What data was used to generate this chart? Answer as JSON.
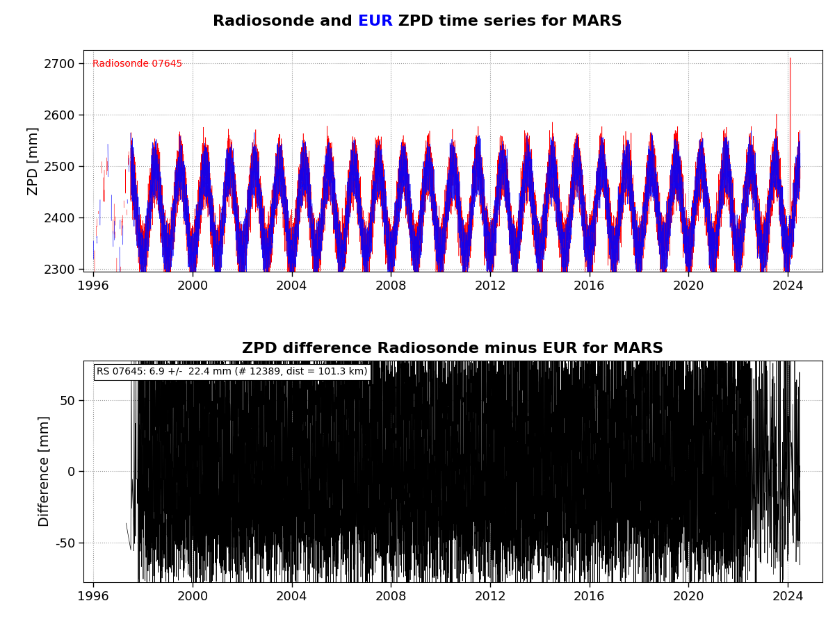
{
  "title1_before": "Radiosonde and ",
  "title1_eur": "EUR",
  "title1_after": " ZPD time series for MARS",
  "title2": "ZPD difference Radiosonde minus EUR for MARS",
  "ylabel1": "ZPD [mm]",
  "ylabel2": "Difference [mm]",
  "ylim1": [
    2295,
    2725
  ],
  "ylim2": [
    -78,
    78
  ],
  "yticks1": [
    2300,
    2400,
    2500,
    2600,
    2700
  ],
  "yticks2": [
    -50,
    0,
    50
  ],
  "xlim": [
    1995.6,
    2025.4
  ],
  "xticks": [
    1996,
    2000,
    2004,
    2008,
    2012,
    2016,
    2020,
    2024
  ],
  "radiosonde_label": "Radiosonde 07645",
  "stats_label": "RS 07645: 6.9 +/-  22.4 mm (# 12389, dist = 101.3 km)",
  "red_color": "#ff0000",
  "blue_color": "#0000ff",
  "black_color": "#000000",
  "background_color": "#ffffff",
  "title_fontsize": 16,
  "label_fontsize": 14,
  "tick_fontsize": 13,
  "annotation_fontsize": 10,
  "seed": 42
}
